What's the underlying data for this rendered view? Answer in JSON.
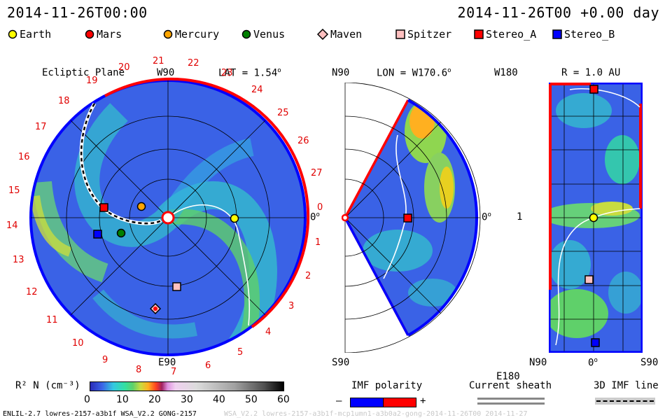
{
  "header": {
    "left_time": "2014-11-26T00:00",
    "right_time": "2014-11-26T00 +0.00 day"
  },
  "legend": [
    {
      "label": "Earth",
      "color": "#ffff00",
      "shape": "circle"
    },
    {
      "label": "Mars",
      "color": "#ff0000",
      "shape": "circle"
    },
    {
      "label": "Mercury",
      "color": "#ffa500",
      "shape": "circle"
    },
    {
      "label": "Venus",
      "color": "#008000",
      "shape": "circle"
    },
    {
      "label": "Maven",
      "color": "#ffc0c0",
      "shape": "diamond"
    },
    {
      "label": "Spitzer",
      "color": "#ffc0c0",
      "shape": "square"
    },
    {
      "label": "Stereo_A",
      "color": "#ff0000",
      "shape": "square"
    },
    {
      "label": "Stereo_B",
      "color": "#0000ff",
      "shape": "square"
    }
  ],
  "panel1": {
    "title": "Ecliptic Plane",
    "top_label": "W90",
    "bottom_label": "E90",
    "lat_label": "LAT = 1.54",
    "zero_label": "0",
    "rotations": [
      "19",
      "20",
      "21",
      "22",
      "23",
      "24",
      "25",
      "26",
      "27",
      "0",
      "1",
      "2",
      "3",
      "4",
      "5",
      "6",
      "7",
      "8",
      "9",
      "10",
      "11",
      "12",
      "13",
      "14",
      "15",
      "16",
      "17",
      "18"
    ]
  },
  "panel2": {
    "title": "LON = W170.6",
    "top_label": "N90",
    "bottom_label": "S90",
    "zero_label": "0"
  },
  "panel3": {
    "title": "R = 1.0 AU",
    "top_label": "W180",
    "bottom_label": "E180",
    "mid_label": "1",
    "x_left": "N90",
    "x_mid": "0",
    "x_right": "S90"
  },
  "colorbar": {
    "label": "R² N (cm⁻³)",
    "ticks": [
      "0",
      "10",
      "20",
      "30",
      "40",
      "50",
      "60"
    ]
  },
  "imf": {
    "label": "IMF polarity",
    "minus": "–",
    "plus": "+"
  },
  "sheath": {
    "label": "Current sheath"
  },
  "imf3d": {
    "label": "3D IMF line"
  },
  "footer": {
    "left": "ENLIL-2.7 lowres-2157-a3b1f WSA_V2.2 GONG-2157",
    "right": "WSA_V2.2 lowres-2157-a3b1f-mcp1umn1-a3b0a2-gong-2014-11-26T00   2014-11-27"
  },
  "chart_data": [
    {
      "type": "heatmap",
      "title": "Ecliptic Plane",
      "bodies": [
        "Earth",
        "Mars",
        "Mercury",
        "Venus",
        "Maven",
        "Spitzer",
        "Stereo_A",
        "Stereo_B"
      ],
      "colorbar_range": [
        0,
        60
      ],
      "ylabel": "LAT = 1.54"
    },
    {
      "type": "heatmap",
      "title": "LON = W170.6",
      "bodies": [
        "Stereo_A"
      ]
    },
    {
      "type": "heatmap",
      "title": "R = 1.0 AU",
      "bodies": [
        "Stereo_A",
        "Earth",
        "Spitzer",
        "Stereo_B"
      ]
    }
  ],
  "colors": {
    "accent_red": "#e00000",
    "blue_bg": "#3366ee"
  }
}
